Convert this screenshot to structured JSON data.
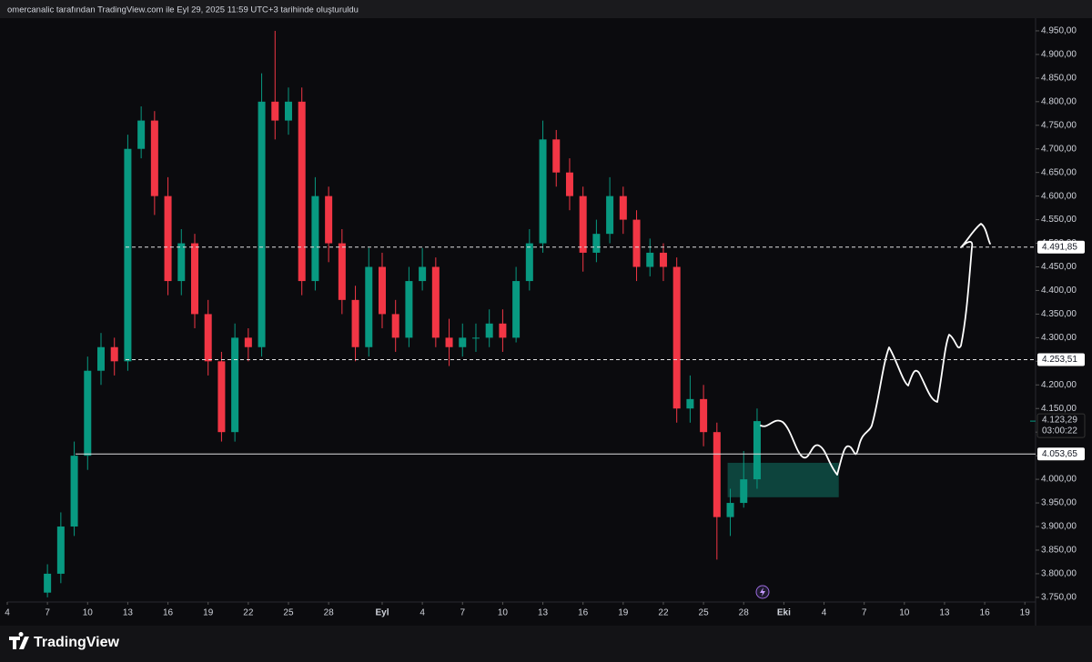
{
  "header": "omercanalic tarafından TradingView.com ile Eyl 29, 2025 11:59 UTC+3 tarihinde oluşturuldu",
  "brand": "TradingView",
  "chart_data": {
    "type": "candlestick",
    "up_color": "#089981",
    "down_color": "#f23645",
    "x": [
      3,
      4,
      5,
      6,
      7,
      8,
      9,
      10,
      11,
      12,
      13,
      14,
      15,
      16,
      17,
      18,
      19,
      20,
      21,
      22,
      23,
      24,
      25,
      26,
      27,
      28,
      29,
      30,
      31,
      32,
      33,
      34,
      35,
      36,
      37,
      38,
      39,
      40,
      41,
      42,
      43,
      44,
      45,
      46,
      47,
      48,
      49,
      50,
      51,
      52,
      53,
      54,
      55,
      56
    ],
    "open": [
      3760,
      3800,
      3900,
      4050,
      4230,
      4280,
      4250,
      4700,
      4760,
      4600,
      4420,
      4500,
      4350,
      4250,
      4100,
      4300,
      4280,
      4800,
      4760,
      4800,
      4420,
      4600,
      4500,
      4380,
      4280,
      4450,
      4350,
      4300,
      4420,
      4450,
      4300,
      4280,
      4300,
      4300,
      4330,
      4300,
      4420,
      4500,
      4720,
      4650,
      4600,
      4480,
      4520,
      4600,
      4550,
      4450,
      4480,
      4450,
      4150,
      4170,
      4100,
      3920,
      3950,
      4000
    ],
    "high": [
      3820,
      3930,
      4080,
      4260,
      4310,
      4300,
      4730,
      4790,
      4780,
      4640,
      4530,
      4520,
      4380,
      4270,
      4330,
      4320,
      4860,
      4950,
      4830,
      4830,
      4640,
      4620,
      4530,
      4410,
      4490,
      4480,
      4380,
      4450,
      4490,
      4470,
      4340,
      4330,
      4330,
      4360,
      4360,
      4450,
      4530,
      4760,
      4740,
      4680,
      4620,
      4550,
      4640,
      4620,
      4570,
      4510,
      4500,
      4470,
      4220,
      4200,
      4120,
      3980,
      4060,
      4150
    ],
    "low": [
      3750,
      3780,
      3880,
      4020,
      4200,
      4220,
      4230,
      4680,
      4560,
      4390,
      4390,
      4320,
      4220,
      4080,
      4080,
      4250,
      4260,
      4720,
      4730,
      4390,
      4400,
      4460,
      4350,
      4250,
      4260,
      4320,
      4270,
      4280,
      4400,
      4280,
      4240,
      4260,
      4270,
      4280,
      4270,
      4290,
      4400,
      4480,
      4620,
      4570,
      4440,
      4460,
      4500,
      4520,
      4420,
      4430,
      4420,
      4120,
      4120,
      4070,
      3830,
      3880,
      3940,
      3980
    ],
    "close": [
      3800,
      3900,
      4050,
      4230,
      4280,
      4250,
      4700,
      4760,
      4600,
      4420,
      4500,
      4350,
      4250,
      4100,
      4300,
      4280,
      4800,
      4760,
      4800,
      4420,
      4600,
      4500,
      4380,
      4280,
      4450,
      4350,
      4300,
      4420,
      4450,
      4300,
      4280,
      4300,
      4300,
      4330,
      4300,
      4420,
      4500,
      4720,
      4650,
      4600,
      4480,
      4520,
      4600,
      4550,
      4450,
      4480,
      4450,
      4150,
      4170,
      4100,
      3920,
      3950,
      4000,
      4123.29
    ],
    "xlim": [
      0,
      76.8
    ],
    "xticks": [
      {
        "value": 0,
        "label": "4"
      },
      {
        "value": 3,
        "label": "7"
      },
      {
        "value": 6,
        "label": "10"
      },
      {
        "value": 9,
        "label": "13"
      },
      {
        "value": 12,
        "label": "16"
      },
      {
        "value": 15,
        "label": "19"
      },
      {
        "value": 18,
        "label": "22"
      },
      {
        "value": 21,
        "label": "25"
      },
      {
        "value": 24,
        "label": "28"
      },
      {
        "value": 28,
        "label": "Eyl"
      },
      {
        "value": 31,
        "label": "4"
      },
      {
        "value": 34,
        "label": "7"
      },
      {
        "value": 37,
        "label": "10"
      },
      {
        "value": 40,
        "label": "13"
      },
      {
        "value": 43,
        "label": "16"
      },
      {
        "value": 46,
        "label": "19"
      },
      {
        "value": 49,
        "label": "22"
      },
      {
        "value": 52,
        "label": "25"
      },
      {
        "value": 55,
        "label": "28"
      },
      {
        "value": 58,
        "label": "Eki"
      },
      {
        "value": 61,
        "label": "4"
      },
      {
        "value": 64,
        "label": "7"
      },
      {
        "value": 67,
        "label": "10"
      },
      {
        "value": 70,
        "label": "13"
      },
      {
        "value": 73,
        "label": "16"
      },
      {
        "value": 76,
        "label": "19"
      }
    ],
    "ylim": [
      3744,
      4973
    ],
    "yticks": [
      {
        "value": 4950,
        "label": "4.950,00"
      },
      {
        "value": 4900,
        "label": "4.900,00"
      },
      {
        "value": 4850,
        "label": "4.850,00"
      },
      {
        "value": 4800,
        "label": "4.800,00"
      },
      {
        "value": 4750,
        "label": "4.750,00"
      },
      {
        "value": 4700,
        "label": "4.700,00"
      },
      {
        "value": 4650,
        "label": "4.650,00"
      },
      {
        "value": 4600,
        "label": "4.600,00"
      },
      {
        "value": 4550,
        "label": "4.550,00"
      },
      {
        "value": 4500,
        "label": "4.500,00"
      },
      {
        "value": 4450,
        "label": "4.450,00"
      },
      {
        "value": 4400,
        "label": "4.400,00"
      },
      {
        "value": 4350,
        "label": "4.350,00"
      },
      {
        "value": 4300,
        "label": "4.300,00"
      },
      {
        "value": 4250,
        "label": "4.250,00"
      },
      {
        "value": 4200,
        "label": "4.200,00"
      },
      {
        "value": 4150,
        "label": "4.150,00"
      },
      {
        "value": 4100,
        "label": "4.100,00"
      },
      {
        "value": 4050,
        "label": "4.050,00"
      },
      {
        "value": 4000,
        "label": "4.000,00"
      },
      {
        "value": 3950,
        "label": "3.950,00"
      },
      {
        "value": 3900,
        "label": "3.900,00"
      },
      {
        "value": 3850,
        "label": "3.850,00"
      },
      {
        "value": 3800,
        "label": "3.800,00"
      },
      {
        "value": 3750,
        "label": "3.750,00"
      }
    ],
    "levels": [
      {
        "value": 4491.85,
        "label": "4.491,85",
        "style": "dashed"
      },
      {
        "value": 4253.51,
        "label": "4.253,51",
        "style": "dashed"
      },
      {
        "value": 4053.65,
        "label": "4.053,65",
        "style": "solid"
      }
    ],
    "last_price": {
      "value": 4123.29,
      "label": "4.123,29"
    },
    "countdown": "03:00:22",
    "zone": {
      "x": [
        53.8,
        62.1
      ],
      "y": [
        3962,
        4035
      ],
      "color": "#0e4f45"
    }
  }
}
